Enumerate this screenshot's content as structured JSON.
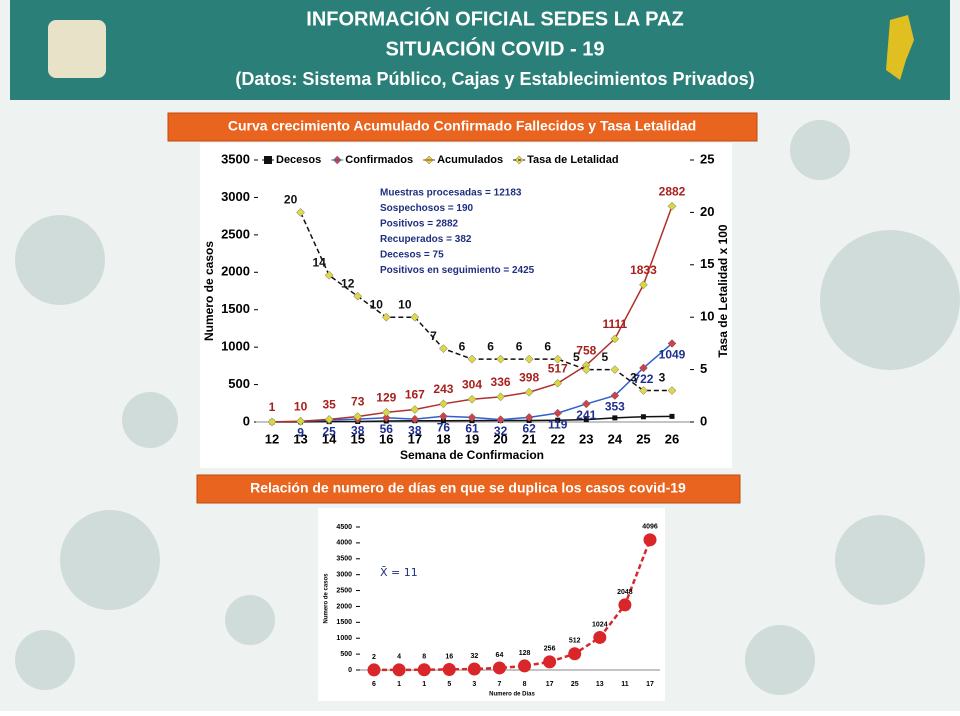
{
  "header": {
    "title": "INFORMACIÓN OFICIAL SEDES LA PAZ",
    "subtitle": "SITUACIÓN  COVID - 19",
    "source": "(Datos: Sistema Público, Cajas y Establecimientos Privados)"
  },
  "chart_data": [
    {
      "type": "line",
      "title": "Curva crecimiento Acumulado Confirmado Fallecidos y Tasa Letalidad",
      "x_label": "Semana de Confirmacion",
      "y_label": "Numero de casos",
      "y2_label": "Tasa de Letalidad x 100",
      "categories": [
        "12",
        "13",
        "14",
        "15",
        "16",
        "17",
        "18",
        "19",
        "20",
        "21",
        "22",
        "23",
        "24",
        "25",
        "26"
      ],
      "ylim": [
        0,
        3500
      ],
      "yticks": [
        0,
        500,
        1000,
        1500,
        2000,
        2500,
        3000,
        3500
      ],
      "y2lim": [
        0,
        25
      ],
      "y2ticks": [
        0,
        5,
        10,
        15,
        20,
        25
      ],
      "annotations": [
        "Muestras procesadas = 12183",
        "Sospechosos  = 190",
        "Positivos = 2882",
        "Recuperados = 382",
        "Decesos = 75",
        "Positivos en seguimiento = 2425"
      ],
      "series": [
        {
          "name": "Decesos",
          "color": "#111111",
          "marker": "square",
          "values": [
            0,
            2,
            5,
            7,
            13,
            17,
            17,
            18,
            20,
            20,
            24,
            31,
            55,
            70,
            75
          ]
        },
        {
          "name": "Confirmados",
          "color": "#2f5fd0",
          "marker_color": "#d0424a",
          "label_color": "#1f2f8f",
          "marker": "diamond",
          "values": [
            null,
            9,
            25,
            38,
            56,
            38,
            76,
            61,
            32,
            62,
            119,
            241,
            353,
            722,
            1049
          ]
        },
        {
          "name": "Acumulados",
          "color": "#b0302c",
          "marker_color": "#d8d83a",
          "label_color": "#a8201c",
          "marker": "diamond",
          "values": [
            1,
            10,
            35,
            73,
            129,
            167,
            243,
            304,
            336,
            398,
            517,
            758,
            1111,
            1833,
            2882
          ]
        },
        {
          "name": "Tasa de Letalidad",
          "color": "#111111",
          "marker_color": "#e0d84a",
          "label_color": "#111111",
          "marker": "diamond",
          "dashed": true,
          "axis": "y2",
          "values": [
            null,
            20,
            14,
            12,
            10,
            10,
            7,
            6,
            6,
            6,
            6,
            5,
            5,
            3,
            3
          ]
        }
      ]
    },
    {
      "type": "line",
      "title": "Relación de numero de días en que se duplica los casos covid-19",
      "x_label": "Numero de Dias",
      "y_label": "Numero de casos",
      "annotation": "X̄ = 11",
      "categories": [
        "6",
        "1",
        "1",
        "5",
        "3",
        "7",
        "8",
        "17",
        "25",
        "13",
        "11",
        "17"
      ],
      "values": [
        2,
        4,
        8,
        16,
        32,
        64,
        128,
        256,
        512,
        1024,
        2048,
        4096
      ],
      "color": "#d9262a",
      "ylim": [
        0,
        4500
      ],
      "yticks": [
        0,
        500,
        1000,
        1500,
        2000,
        2500,
        3000,
        3500,
        4000,
        4500
      ]
    }
  ]
}
